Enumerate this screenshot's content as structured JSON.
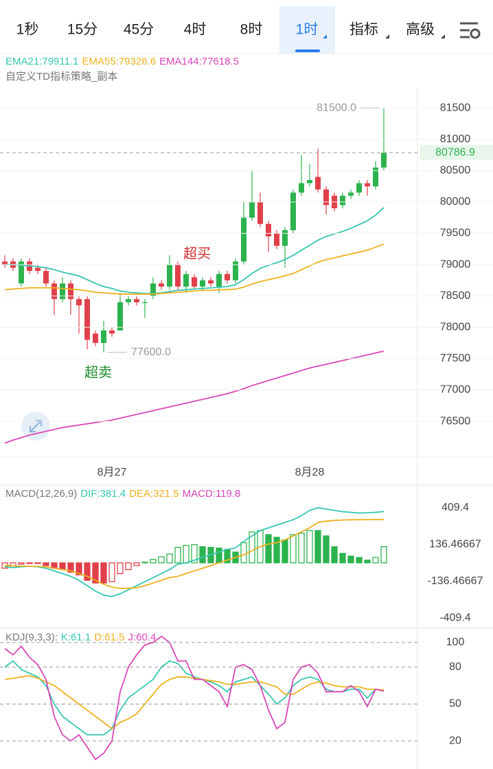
{
  "tabs": [
    "1秒",
    "15分",
    "45分",
    "4时",
    "8时",
    "1时",
    "指标",
    "高级"
  ],
  "chart_data": [
    {
      "type": "candlestick",
      "subtitle": "自定义TD指标策略_副本",
      "annotations": [
        "超买",
        "超卖"
      ],
      "categories": [
        null,
        null,
        null,
        null,
        null,
        null,
        null,
        null,
        null,
        null,
        null,
        null,
        null,
        "8月27",
        null,
        null,
        null,
        null,
        null,
        null,
        null,
        null,
        null,
        null,
        null,
        null,
        null,
        null,
        null,
        null,
        null,
        null,
        null,
        null,
        null,
        null,
        null,
        "8月28",
        null,
        null,
        null,
        null,
        null,
        null,
        null,
        null,
        null
      ],
      "open": [
        79050,
        79050,
        78700,
        79050,
        78950,
        78900,
        78700,
        78450,
        78700,
        78450,
        78450,
        77900,
        77750,
        77950,
        77950,
        78400,
        78450,
        78400,
        78500,
        78700,
        78650,
        79000,
        78650,
        78800,
        78650,
        78750,
        78650,
        78850,
        78750,
        79050,
        79750,
        80000,
        79650,
        79500,
        79300,
        79550,
        80150,
        80300,
        80400,
        80200,
        80100,
        79950,
        80100,
        80150,
        80300,
        80250,
        80550
      ],
      "high": [
        79150,
        79100,
        79100,
        79100,
        79000,
        78950,
        78750,
        78800,
        78750,
        78500,
        78500,
        77950,
        78100,
        78000,
        78550,
        78500,
        78500,
        78450,
        78800,
        78750,
        79150,
        79050,
        78900,
        78850,
        78800,
        78800,
        78900,
        78900,
        79100,
        80000,
        80500,
        80150,
        79700,
        79550,
        79600,
        80200,
        80750,
        80600,
        80850,
        80250,
        80150,
        80150,
        80200,
        80350,
        80350,
        80650,
        81500
      ],
      "low": [
        78950,
        78900,
        78650,
        78850,
        78850,
        78650,
        78200,
        78400,
        78200,
        77900,
        77650,
        77700,
        77600,
        77850,
        77950,
        78350,
        78350,
        78150,
        78450,
        78600,
        78600,
        78600,
        78550,
        78600,
        78600,
        78650,
        78550,
        78700,
        78700,
        79000,
        79700,
        79600,
        79200,
        79250,
        78950,
        79500,
        80100,
        80250,
        80150,
        79800,
        79850,
        79900,
        80050,
        80100,
        80100,
        80200,
        80500
      ],
      "close": [
        79000,
        78950,
        79050,
        78900,
        78900,
        78700,
        78450,
        78700,
        78450,
        78350,
        77800,
        77750,
        77950,
        77900,
        78400,
        78450,
        78400,
        78400,
        78700,
        78650,
        79000,
        78650,
        78850,
        78650,
        78750,
        78700,
        78850,
        78750,
        79050,
        79750,
        80000,
        79650,
        79450,
        79300,
        79550,
        80150,
        80300,
        80350,
        80200,
        79950,
        79900,
        80100,
        80150,
        80300,
        80250,
        80550,
        80786.9
      ],
      "up_color": "#2db34e",
      "down_color": "#e0404a",
      "series": [
        {
          "name": "EMA21:79911.1",
          "color": "#35c6b0",
          "values": [
            79000,
            79000,
            78990,
            78980,
            78970,
            78950,
            78920,
            78880,
            78850,
            78820,
            78760,
            78700,
            78650,
            78620,
            78580,
            78560,
            78550,
            78540,
            78540,
            78550,
            78570,
            78590,
            78600,
            78610,
            78620,
            78630,
            78640,
            78650,
            78680,
            78760,
            78860,
            78940,
            78990,
            79030,
            79080,
            79150,
            79230,
            79310,
            79390,
            79450,
            79490,
            79530,
            79580,
            79640,
            79700,
            79790,
            79911.1
          ]
        },
        {
          "name": "EMA55:79326.6",
          "color": "#eeb01e",
          "values": [
            78600,
            78610,
            78620,
            78630,
            78630,
            78630,
            78630,
            78620,
            78610,
            78600,
            78580,
            78560,
            78550,
            78540,
            78530,
            78530,
            78530,
            78530,
            78530,
            78540,
            78550,
            78560,
            78570,
            78580,
            78590,
            78590,
            78600,
            78600,
            78610,
            78640,
            78690,
            78730,
            78760,
            78790,
            78820,
            78860,
            78920,
            78980,
            79040,
            79080,
            79110,
            79140,
            79170,
            79200,
            79230,
            79280,
            79326.6
          ]
        },
        {
          "name": "EMA144:77618.5",
          "color": "#d946b8",
          "values": [
            76150,
            76200,
            76240,
            76280,
            76310,
            76340,
            76370,
            76400,
            76420,
            76440,
            76460,
            76480,
            76500,
            76520,
            76550,
            76580,
            76610,
            76640,
            76670,
            76700,
            76730,
            76760,
            76790,
            76820,
            76850,
            76880,
            76910,
            76940,
            76980,
            77020,
            77070,
            77110,
            77150,
            77190,
            77230,
            77270,
            77310,
            77350,
            77380,
            77410,
            77440,
            77470,
            77500,
            77530,
            77560,
            77590,
            77618.5
          ]
        }
      ],
      "high_label": {
        "value": 81500,
        "label": "81500.0"
      },
      "low_label": {
        "value": 77600,
        "label": "77600.0"
      },
      "last_price": 80786.9,
      "ylim": [
        75930,
        81820
      ],
      "yticks": [
        81500,
        81000,
        80500,
        80000,
        79500,
        79000,
        78500,
        78000,
        77500,
        77000,
        76500
      ],
      "grid": true
    },
    {
      "type": "macd",
      "title": "MACD(12,26,9)",
      "histogram": {
        "name": "MACD:119.8",
        "color": "#d946b8",
        "up_color": "#2db34e",
        "down_color": "#e0404a",
        "values": [
          -40,
          -35,
          -10,
          -5,
          -5,
          -20,
          -40,
          -50,
          -70,
          -90,
          -130,
          -150,
          -150,
          -140,
          -80,
          -50,
          -20,
          5,
          25,
          45,
          65,
          115,
          130,
          135,
          120,
          115,
          110,
          100,
          80,
          150,
          230,
          240,
          210,
          190,
          170,
          210,
          220,
          240,
          240,
          200,
          120,
          70,
          50,
          40,
          20,
          40,
          119.8
        ]
      },
      "series": [
        {
          "name": "DIF:381.4",
          "color": "#35c6b0",
          "values": [
            -30,
            -35,
            -30,
            -25,
            -30,
            -40,
            -60,
            -80,
            -100,
            -130,
            -170,
            -210,
            -240,
            -250,
            -230,
            -200,
            -170,
            -140,
            -110,
            -80,
            -50,
            -10,
            0,
            20,
            40,
            60,
            80,
            100,
            110,
            160,
            200,
            240,
            260,
            280,
            300,
            320,
            350,
            390,
            409.4,
            400,
            390,
            380,
            375,
            370,
            372,
            375,
            381.4
          ]
        },
        {
          "name": "DEA:321.5",
          "color": "#eeb01e",
          "values": [
            -20,
            -22,
            -25,
            -25,
            -27,
            -30,
            -40,
            -50,
            -60,
            -80,
            -100,
            -130,
            -160,
            -180,
            -190,
            -190,
            -185,
            -170,
            -150,
            -130,
            -110,
            -100,
            -80,
            -60,
            -40,
            -20,
            0,
            20,
            40,
            60,
            90,
            120,
            140,
            150,
            170,
            200,
            230,
            260,
            300,
            310,
            315,
            318,
            320,
            320,
            321,
            321,
            321.5
          ]
        }
      ],
      "ylim": [
        -480,
        480
      ],
      "yticks": [
        409.4,
        136.46667,
        -136.46667,
        -409.4
      ],
      "grid": false
    },
    {
      "type": "line",
      "title": "KDJ(9,3,3):",
      "series": [
        {
          "name": "K:61.1",
          "color": "#35c6b0",
          "values": [
            80,
            85,
            78,
            75,
            72,
            65,
            50,
            40,
            35,
            30,
            25,
            25,
            25,
            30,
            45,
            55,
            60,
            65,
            70,
            80,
            85,
            83,
            75,
            72,
            70,
            68,
            65,
            60,
            68,
            70,
            72,
            65,
            58,
            50,
            55,
            65,
            70,
            72,
            70,
            62,
            60,
            60,
            62,
            62,
            55,
            62,
            61.1
          ]
        },
        {
          "name": "D:61.5",
          "color": "#eeb01e",
          "values": [
            70,
            71,
            72,
            73,
            71,
            68,
            65,
            60,
            55,
            50,
            45,
            40,
            35,
            30,
            35,
            38,
            42,
            50,
            58,
            66,
            70,
            72,
            72,
            71,
            70,
            69,
            68,
            66,
            66,
            67,
            68,
            68,
            66,
            64,
            58,
            58,
            62,
            66,
            68,
            67,
            65,
            64,
            64,
            64,
            62,
            62,
            61.5
          ]
        },
        {
          "name": "J:60.4",
          "color": "#d946b8",
          "values": [
            95,
            90,
            97,
            88,
            82,
            70,
            40,
            25,
            20,
            25,
            15,
            5,
            10,
            20,
            60,
            80,
            90,
            98,
            100,
            105,
            100,
            85,
            85,
            70,
            70,
            65,
            60,
            48,
            80,
            82,
            78,
            65,
            45,
            30,
            35,
            70,
            80,
            82,
            75,
            60,
            60,
            60,
            65,
            60,
            48,
            62,
            60.4
          ]
        }
      ],
      "ylim": [
        0,
        110
      ],
      "yticks": [
        100,
        80,
        50,
        20
      ],
      "grid": true
    }
  ]
}
